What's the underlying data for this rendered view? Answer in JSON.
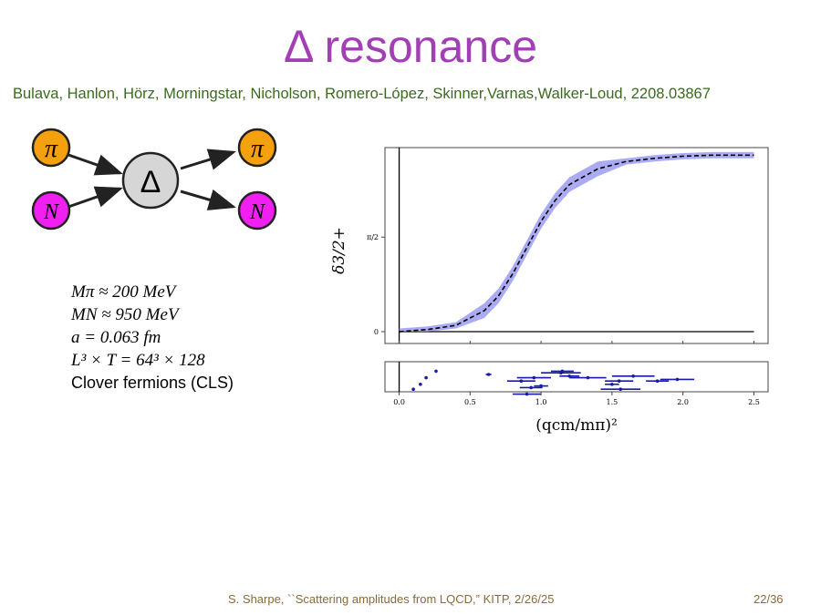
{
  "slide": {
    "title": "Δ resonance",
    "authors": "Bulava, Hanlon, Hörz, Morningstar, Nicholson, Romero-López, Skinner,Varnas,Walker-Loud, 2208.03867",
    "footer": "S. Sharpe, ``Scattering amplitudes from LQCD,”  KITP, 2/26/25",
    "page": "22/36"
  },
  "diagram": {
    "pion_label": "π",
    "nucleon_label": "N",
    "delta_label": "Δ",
    "colors": {
      "pion": "#f5a00f",
      "nucleon": "#f020f0",
      "delta": "#d6d6d6"
    }
  },
  "params": {
    "mpi": "Mπ ≈ 200 MeV",
    "mn": "MN ≈ 950 MeV",
    "a": "a = 0.063 fm",
    "vol": "L³ × T = 64³ × 128",
    "fermions": "Clover fermions (CLS)"
  },
  "chart_data": {
    "type": "line",
    "xlabel": "(qcm/mπ)²",
    "ylabel": "δ3/2+",
    "xlim": [
      -0.1,
      2.6
    ],
    "x_ticks": [
      "0.0",
      "0.5",
      "1.0",
      "1.5",
      "2.0",
      "2.5"
    ],
    "y_ticks": [
      "0",
      "π/2"
    ],
    "colors": {
      "band": "#8f8fef",
      "curve": "#000000",
      "points": "#1a1aaa"
    },
    "series": [
      {
        "x": [
          0.0,
          0.2,
          0.4,
          0.6,
          0.7,
          0.8,
          0.9,
          1.0,
          1.1,
          1.2,
          1.4,
          1.6,
          1.8,
          2.0,
          2.2,
          2.5
        ],
        "y_deg": [
          0,
          2,
          6,
          20,
          34,
          55,
          80,
          105,
          125,
          140,
          155,
          162,
          165,
          167,
          168,
          168
        ]
      }
    ],
    "points_panel": [
      {
        "x": 0.1,
        "err": 0.01
      },
      {
        "x": 0.15,
        "err": 0.01
      },
      {
        "x": 0.19,
        "err": 0.01
      },
      {
        "x": 0.26,
        "err": 0.01
      },
      {
        "x": 0.63,
        "err": 0.02
      },
      {
        "x": 0.86,
        "err": 0.1
      },
      {
        "x": 0.95,
        "err": 0.12
      },
      {
        "x": 1.0,
        "err": 0.05
      },
      {
        "x": 0.9,
        "err": 0.1
      },
      {
        "x": 0.93,
        "err": 0.08
      },
      {
        "x": 1.14,
        "err": 0.14
      },
      {
        "x": 1.33,
        "err": 0.13
      },
      {
        "x": 1.55,
        "err": 0.1
      },
      {
        "x": 1.56,
        "err": 0.14
      },
      {
        "x": 1.5,
        "err": 0.05
      },
      {
        "x": 1.65,
        "err": 0.15
      },
      {
        "x": 1.82,
        "err": 0.08
      },
      {
        "x": 1.96,
        "err": 0.12
      },
      {
        "x": 1.15,
        "err": 0.08
      },
      {
        "x": 1.2,
        "err": 0.07
      }
    ]
  }
}
